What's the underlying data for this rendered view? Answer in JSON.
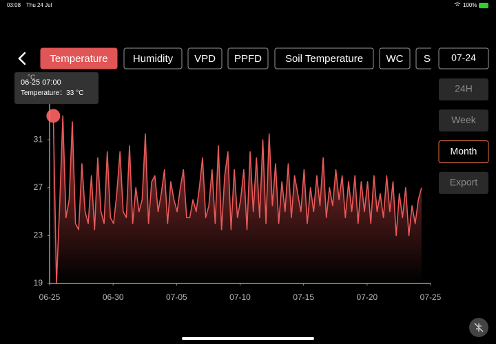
{
  "status_bar": {
    "time": "03:08",
    "date": "Thu 24 Jul",
    "battery": "100%"
  },
  "tabs": [
    "Temperature",
    "Humidity",
    "VPD",
    "PPFD",
    "Soil Temperature",
    "WC",
    "So"
  ],
  "selected_tab": 0,
  "date_button": "07-24",
  "range_buttons": [
    "24H",
    "Week",
    "Month",
    "Export"
  ],
  "selected_range": 2,
  "chart_data": {
    "type": "area",
    "y_unit": "°C",
    "ylim": [
      19,
      34
    ],
    "yticks": [
      19,
      23,
      27,
      31
    ],
    "xlim": [
      "06-25 00:00",
      "07-25 00:00"
    ],
    "xticks": [
      {
        "value": "06-25 00:00",
        "label": "06-25"
      },
      {
        "value": "06-30 00:00",
        "label": "06-30"
      },
      {
        "value": "07-05 00:00",
        "label": "07-05"
      },
      {
        "value": "07-10 00:00",
        "label": "07-10"
      },
      {
        "value": "07-15 00:00",
        "label": "07-15"
      },
      {
        "value": "07-20 00:00",
        "label": "07-20"
      },
      {
        "value": "07-25 00:00",
        "label": "07-25"
      }
    ],
    "x": [
      "06-25 07:00",
      "06-25 13:00",
      "06-25 19:00",
      "06-26 01:00",
      "06-26 07:00",
      "06-26 13:00",
      "06-26 19:00",
      "06-27 01:00",
      "06-27 07:00",
      "06-27 13:00",
      "06-27 19:00",
      "06-28 01:00",
      "06-28 07:00",
      "06-28 13:00",
      "06-28 19:00",
      "06-29 01:00",
      "06-29 07:00",
      "06-29 13:00",
      "06-29 19:00",
      "06-30 01:00",
      "06-30 07:00",
      "06-30 13:00",
      "06-30 19:00",
      "07-01 01:00",
      "07-01 07:00",
      "07-01 13:00",
      "07-01 19:00",
      "07-02 01:00",
      "07-02 07:00",
      "07-02 13:00",
      "07-02 19:00",
      "07-03 01:00",
      "07-03 07:00",
      "07-03 13:00",
      "07-03 19:00",
      "07-04 01:00",
      "07-04 07:00",
      "07-04 13:00",
      "07-04 19:00",
      "07-05 01:00",
      "07-05 07:00",
      "07-05 13:00",
      "07-05 19:00",
      "07-06 01:00",
      "07-06 07:00",
      "07-06 13:00",
      "07-06 19:00",
      "07-07 01:00",
      "07-07 07:00",
      "07-07 13:00",
      "07-07 19:00",
      "07-08 01:00",
      "07-08 07:00",
      "07-08 13:00",
      "07-08 19:00",
      "07-09 01:00",
      "07-09 07:00",
      "07-09 13:00",
      "07-09 19:00",
      "07-10 01:00",
      "07-10 07:00",
      "07-10 13:00",
      "07-10 19:00",
      "07-11 01:00",
      "07-11 07:00",
      "07-11 13:00",
      "07-11 19:00",
      "07-12 01:00",
      "07-12 07:00",
      "07-12 13:00",
      "07-12 19:00",
      "07-13 01:00",
      "07-13 07:00",
      "07-13 13:00",
      "07-13 19:00",
      "07-14 01:00",
      "07-14 07:00",
      "07-14 13:00",
      "07-14 19:00",
      "07-15 01:00",
      "07-15 07:00",
      "07-15 13:00",
      "07-15 19:00",
      "07-16 01:00",
      "07-16 07:00",
      "07-16 13:00",
      "07-16 19:00",
      "07-17 01:00",
      "07-17 07:00",
      "07-17 13:00",
      "07-17 19:00",
      "07-18 01:00",
      "07-18 07:00",
      "07-18 13:00",
      "07-18 19:00",
      "07-19 01:00",
      "07-19 07:00",
      "07-19 13:00",
      "07-19 19:00",
      "07-20 01:00",
      "07-20 07:00",
      "07-20 13:00",
      "07-20 19:00",
      "07-21 01:00",
      "07-21 07:00",
      "07-21 13:00",
      "07-21 19:00",
      "07-22 01:00",
      "07-22 07:00",
      "07-22 13:00",
      "07-22 19:00",
      "07-23 01:00",
      "07-23 07:00",
      "07-23 13:00",
      "07-23 19:00",
      "07-24 01:00",
      "07-24 07:00"
    ],
    "series": [
      {
        "name": "Temperature",
        "color": "#e85a5a",
        "values": [
          33,
          19,
          25.5,
          33,
          24.5,
          26,
          32.5,
          24,
          23.5,
          29,
          25,
          24,
          28,
          23.5,
          29.5,
          25,
          24,
          30,
          24.5,
          24,
          26.5,
          30,
          25,
          24.5,
          30.5,
          24,
          27,
          25,
          26,
          31.5,
          24,
          27.5,
          28,
          25,
          26.5,
          28.5,
          24,
          27.5,
          26,
          25,
          27,
          28.5,
          24.5,
          24.5,
          26,
          25,
          27,
          29.5,
          24.5,
          25.5,
          28.5,
          24,
          30.5,
          23.5,
          28,
          30,
          23.5,
          28.5,
          24.5,
          26,
          28.5,
          23.5,
          30,
          25,
          29.5,
          24.5,
          31,
          24,
          31.5,
          25.5,
          29,
          24,
          27.5,
          25,
          29,
          24.5,
          28,
          26.5,
          25,
          28.5,
          24,
          27,
          25,
          28,
          25.5,
          29.5,
          24.5,
          27,
          25.5,
          28.5,
          26,
          28,
          24.5,
          27.5,
          25,
          28,
          24,
          27.5,
          25,
          27.5,
          24,
          28,
          25,
          26.5,
          24.5,
          28,
          25,
          27.5,
          23,
          26.5,
          24.5,
          27,
          23,
          25.5,
          24,
          26,
          27
        ]
      }
    ]
  }
}
